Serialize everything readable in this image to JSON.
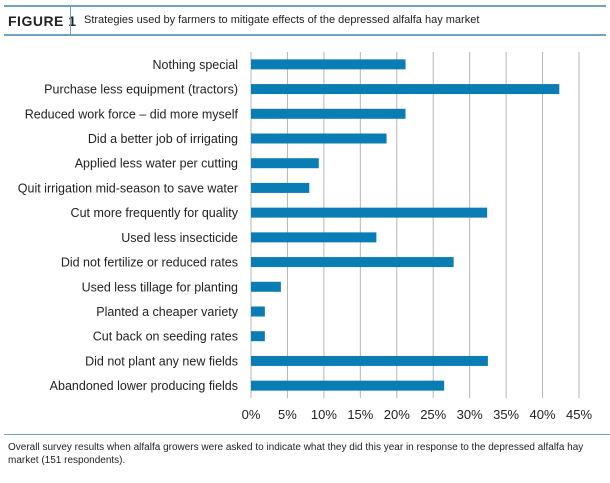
{
  "figure_label": "FIGURE 1",
  "title": "Strategies used by farmers to mitigate effects of the depressed alfalfa hay market",
  "caption": "Overall survey results when alfalfa growers were asked to indicate what they did this year in response to the depressed alfalfa hay market (151 respondents).",
  "colors": {
    "bar": "#0a7db5",
    "accent": "#6fa3c3",
    "grid": "#b5b5b5"
  },
  "chart_data": {
    "type": "bar",
    "orientation": "horizontal",
    "categories": [
      "Nothing special",
      "Purchase less equipment (tractors)",
      "Reduced work force – did more myself",
      "Did a better job of irrigating",
      "Applied less water per cutting",
      "Quit irrigation mid-season to save water",
      "Cut more frequently for quality",
      "Used less insecticide",
      "Did not fertilize or reduced rates",
      "Used less tillage for planting",
      "Planted a cheaper variety",
      "Cut back on seeding rates",
      "Did not plant any new fields",
      "Abandoned lower producing fields"
    ],
    "values": [
      21.2,
      42.3,
      21.2,
      18.6,
      9.3,
      8.0,
      32.4,
      17.2,
      27.8,
      4.1,
      1.9,
      1.9,
      32.5,
      26.5
    ],
    "xlim": [
      0,
      45
    ],
    "xticks": [
      "0%",
      "5%",
      "10%",
      "15%",
      "20%",
      "25%",
      "30%",
      "35%",
      "40%",
      "45%"
    ],
    "grid": true,
    "unit": "%"
  }
}
